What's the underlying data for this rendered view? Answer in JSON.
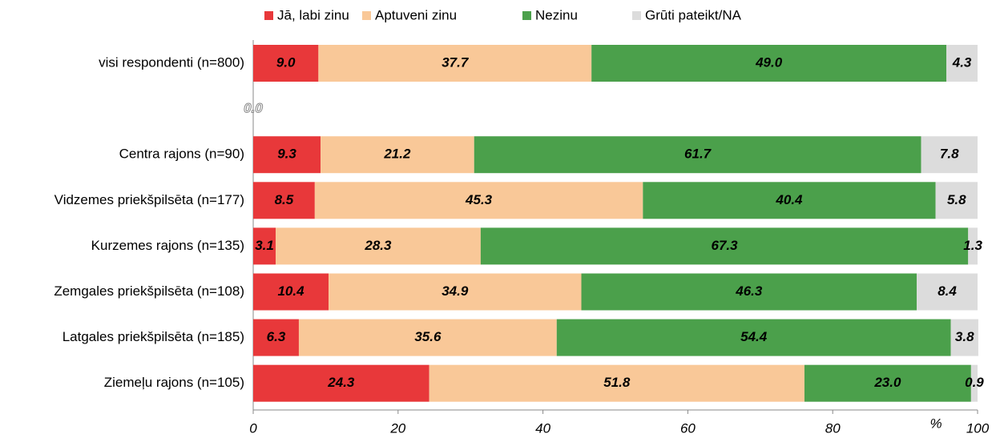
{
  "chart_data": {
    "type": "stacked-bar-horizontal",
    "categories": [
      "visi respondenti (n=800)",
      null,
      "Centra rajons (n=90)",
      "Vidzemes priekšpilsēta (n=177)",
      "Kurzemes rajons (n=135)",
      "Zemgales priekšpilsēta (n=108)",
      "Latgales priekšpilsēta (n=185)",
      "Ziemeļu rajons (n=105)"
    ],
    "series": [
      {
        "name": "Jā, labi zinu",
        "color": "#e8383a",
        "values": [
          9.0,
          0,
          9.3,
          8.5,
          3.1,
          10.4,
          6.3,
          24.3
        ],
        "value_labels": [
          "9.0",
          "0.0",
          "9.3",
          "8.5",
          "3.1",
          "10.4",
          "6.3",
          "24.3"
        ]
      },
      {
        "name": "Aptuveni zinu",
        "color": "#f9c898",
        "values": [
          37.7,
          null,
          21.2,
          45.3,
          28.3,
          34.9,
          35.6,
          51.8
        ],
        "value_labels": [
          "37.7",
          null,
          "21.2",
          "45.3",
          "28.3",
          "34.9",
          "35.6",
          "51.8"
        ]
      },
      {
        "name": "Nezinu",
        "color": "#4ba04b",
        "values": [
          49.0,
          null,
          61.7,
          40.4,
          67.3,
          46.3,
          54.4,
          23.0
        ],
        "value_labels": [
          "49.0",
          null,
          "61.7",
          "40.4",
          "67.3",
          "46.3",
          "54.4",
          "23.0"
        ]
      },
      {
        "name": "Grūti pateikt/NA",
        "color": "#dcdcdc",
        "values": [
          4.3,
          null,
          7.8,
          5.8,
          1.3,
          8.4,
          3.8,
          0.9
        ],
        "value_labels": [
          "4.3",
          null,
          "7.8",
          "5.8",
          "1.3",
          "8.4",
          "3.8",
          "0.9"
        ]
      }
    ],
    "x_label": "%",
    "xlim": [
      0,
      100
    ],
    "xticks": [
      0,
      20,
      40,
      60,
      80,
      100
    ],
    "legend": "top"
  }
}
